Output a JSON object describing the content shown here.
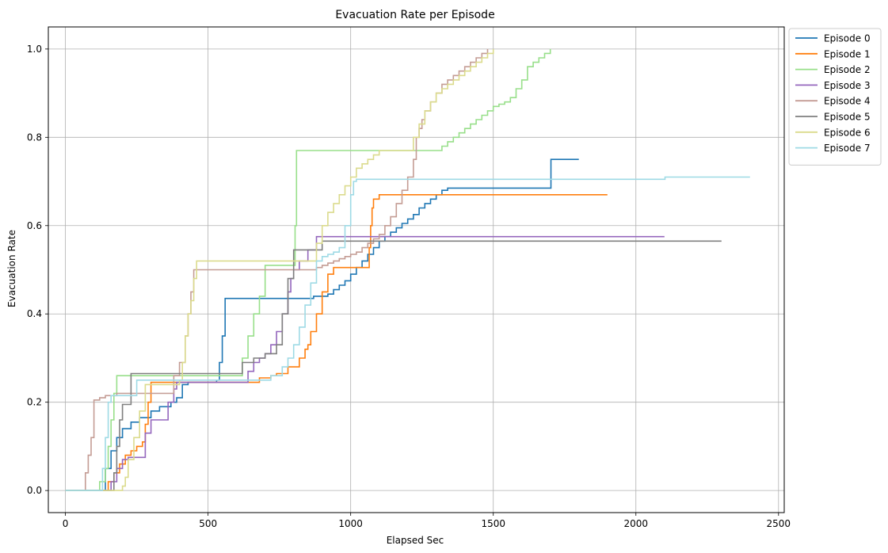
{
  "chart_data": {
    "type": "line",
    "title": "Evacuation Rate per Episode",
    "xlabel": "Elapsed Sec",
    "ylabel": "Evacuation Rate",
    "xlim": [
      -60,
      2520
    ],
    "ylim": [
      -0.05,
      1.05
    ],
    "xticks": [
      0,
      500,
      1000,
      1500,
      2000,
      2500
    ],
    "xtick_labels": [
      "0",
      "500",
      "1000",
      "1500",
      "2000",
      "2500"
    ],
    "yticks": [
      0.0,
      0.2,
      0.4,
      0.6,
      0.8,
      1.0
    ],
    "ytick_labels": [
      "0.0",
      "0.2",
      "0.4",
      "0.6",
      "0.8",
      "1.0"
    ],
    "grid": true,
    "legend_position": "outside top-right",
    "series": [
      {
        "name": "Episode 0",
        "color": "#1f77b4",
        "x": [
          0,
          110,
          140,
          160,
          180,
          200,
          230,
          260,
          300,
          330,
          370,
          390,
          410,
          430,
          530,
          540,
          550,
          560,
          800,
          870,
          920,
          940,
          960,
          980,
          1000,
          1020,
          1040,
          1060,
          1080,
          1100,
          1120,
          1140,
          1160,
          1180,
          1200,
          1220,
          1240,
          1260,
          1280,
          1300,
          1320,
          1340,
          1700,
          1702,
          1800
        ],
        "y": [
          0,
          0,
          0.05,
          0.09,
          0.12,
          0.14,
          0.155,
          0.165,
          0.18,
          0.19,
          0.2,
          0.21,
          0.24,
          0.245,
          0.25,
          0.29,
          0.35,
          0.435,
          0.435,
          0.44,
          0.445,
          0.455,
          0.465,
          0.475,
          0.49,
          0.505,
          0.52,
          0.535,
          0.55,
          0.565,
          0.575,
          0.585,
          0.595,
          0.605,
          0.615,
          0.625,
          0.64,
          0.65,
          0.66,
          0.67,
          0.68,
          0.685,
          0.685,
          0.75,
          0.75
        ]
      },
      {
        "name": "Episode 1",
        "color": "#ff7f0e",
        "x": [
          0,
          130,
          150,
          170,
          190,
          210,
          230,
          250,
          270,
          280,
          290,
          300,
          640,
          680,
          720,
          740,
          780,
          820,
          840,
          850,
          860,
          880,
          900,
          920,
          940,
          1060,
          1065,
          1070,
          1075,
          1080,
          1100,
          1900
        ],
        "y": [
          0,
          0,
          0.02,
          0.04,
          0.06,
          0.08,
          0.09,
          0.1,
          0.11,
          0.15,
          0.2,
          0.245,
          0.245,
          0.255,
          0.26,
          0.265,
          0.28,
          0.3,
          0.32,
          0.33,
          0.36,
          0.4,
          0.45,
          0.49,
          0.505,
          0.505,
          0.55,
          0.6,
          0.64,
          0.66,
          0.67,
          0.67
        ]
      },
      {
        "name": "Episode 2",
        "color": "#98df8a",
        "x": [
          0,
          110,
          120,
          140,
          150,
          160,
          170,
          180,
          600,
          620,
          640,
          660,
          680,
          700,
          720,
          740,
          760,
          780,
          800,
          805,
          810,
          1300,
          1320,
          1340,
          1360,
          1380,
          1400,
          1420,
          1440,
          1460,
          1480,
          1500,
          1520,
          1540,
          1560,
          1580,
          1600,
          1620,
          1640,
          1660,
          1680,
          1700
        ],
        "y": [
          0,
          0,
          0.02,
          0.05,
          0.1,
          0.16,
          0.22,
          0.26,
          0.26,
          0.3,
          0.35,
          0.4,
          0.44,
          0.51,
          0.51,
          0.51,
          0.51,
          0.51,
          0.51,
          0.6,
          0.77,
          0.77,
          0.78,
          0.79,
          0.8,
          0.81,
          0.82,
          0.83,
          0.84,
          0.85,
          0.86,
          0.87,
          0.875,
          0.88,
          0.89,
          0.91,
          0.93,
          0.96,
          0.97,
          0.98,
          0.99,
          1.0
        ]
      },
      {
        "name": "Episode 3",
        "color": "#9467bd",
        "x": [
          0,
          150,
          160,
          180,
          200,
          220,
          240,
          270,
          280,
          300,
          340,
          360,
          380,
          390,
          620,
          640,
          660,
          680,
          700,
          720,
          740,
          760,
          780,
          790,
          800,
          820,
          850,
          880,
          2100
        ],
        "y": [
          0,
          0,
          0.02,
          0.05,
          0.07,
          0.075,
          0.075,
          0.075,
          0.13,
          0.16,
          0.16,
          0.2,
          0.23,
          0.245,
          0.245,
          0.27,
          0.29,
          0.3,
          0.31,
          0.33,
          0.36,
          0.4,
          0.45,
          0.48,
          0.5,
          0.52,
          0.545,
          0.575,
          0.575
        ]
      },
      {
        "name": "Episode 4",
        "color": "#c49c94",
        "x": [
          0,
          55,
          70,
          80,
          90,
          100,
          120,
          140,
          180,
          220,
          260,
          300,
          340,
          380,
          400,
          420,
          430,
          440,
          450,
          860,
          880,
          900,
          920,
          940,
          960,
          980,
          1000,
          1020,
          1040,
          1060,
          1080,
          1100,
          1120,
          1140,
          1160,
          1180,
          1200,
          1220,
          1230,
          1240,
          1250,
          1260,
          1280,
          1300,
          1320,
          1340,
          1360,
          1380,
          1400,
          1420,
          1440,
          1460,
          1480
        ],
        "y": [
          0,
          0,
          0.04,
          0.08,
          0.12,
          0.205,
          0.21,
          0.215,
          0.22,
          0.22,
          0.22,
          0.22,
          0.22,
          0.26,
          0.29,
          0.35,
          0.4,
          0.45,
          0.5,
          0.5,
          0.505,
          0.51,
          0.515,
          0.52,
          0.525,
          0.53,
          0.535,
          0.54,
          0.55,
          0.56,
          0.57,
          0.58,
          0.6,
          0.62,
          0.65,
          0.68,
          0.71,
          0.75,
          0.8,
          0.82,
          0.84,
          0.86,
          0.88,
          0.9,
          0.92,
          0.93,
          0.94,
          0.95,
          0.96,
          0.97,
          0.98,
          0.99,
          1.0
        ]
      },
      {
        "name": "Episode 5",
        "color": "#7f7f7f",
        "x": [
          0,
          160,
          170,
          180,
          190,
          200,
          230,
          600,
          620,
          660,
          700,
          740,
          760,
          780,
          800,
          900,
          2300
        ],
        "y": [
          0,
          0,
          0.04,
          0.1,
          0.16,
          0.195,
          0.265,
          0.265,
          0.29,
          0.3,
          0.31,
          0.33,
          0.4,
          0.48,
          0.545,
          0.565,
          0.565
        ]
      },
      {
        "name": "Episode 6",
        "color": "#dbdb8d",
        "x": [
          0,
          190,
          200,
          210,
          220,
          240,
          260,
          280,
          400,
          410,
          420,
          430,
          440,
          450,
          460,
          860,
          880,
          900,
          920,
          940,
          960,
          980,
          1000,
          1020,
          1040,
          1060,
          1080,
          1100,
          1200,
          1220,
          1240,
          1260,
          1280,
          1300,
          1320,
          1340,
          1360,
          1380,
          1400,
          1420,
          1440,
          1460,
          1480,
          1500
        ],
        "y": [
          0,
          0,
          0.01,
          0.03,
          0.07,
          0.12,
          0.18,
          0.24,
          0.25,
          0.29,
          0.35,
          0.4,
          0.43,
          0.48,
          0.52,
          0.52,
          0.56,
          0.6,
          0.63,
          0.65,
          0.67,
          0.69,
          0.71,
          0.73,
          0.74,
          0.75,
          0.76,
          0.77,
          0.77,
          0.8,
          0.83,
          0.86,
          0.88,
          0.9,
          0.91,
          0.92,
          0.93,
          0.94,
          0.95,
          0.96,
          0.97,
          0.98,
          0.99,
          1.0
        ]
      },
      {
        "name": "Episode 7",
        "color": "#9edae5",
        "x": [
          0,
          120,
          130,
          140,
          150,
          160,
          240,
          250,
          690,
          720,
          760,
          780,
          800,
          820,
          840,
          860,
          880,
          900,
          920,
          940,
          960,
          980,
          1000,
          1010,
          1020,
          1050,
          2100,
          2102,
          2400
        ],
        "y": [
          0,
          0,
          0.05,
          0.12,
          0.2,
          0.215,
          0.215,
          0.25,
          0.25,
          0.26,
          0.28,
          0.3,
          0.33,
          0.37,
          0.42,
          0.47,
          0.52,
          0.53,
          0.535,
          0.54,
          0.55,
          0.6,
          0.67,
          0.7,
          0.705,
          0.705,
          0.705,
          0.71,
          0.71
        ]
      }
    ]
  }
}
